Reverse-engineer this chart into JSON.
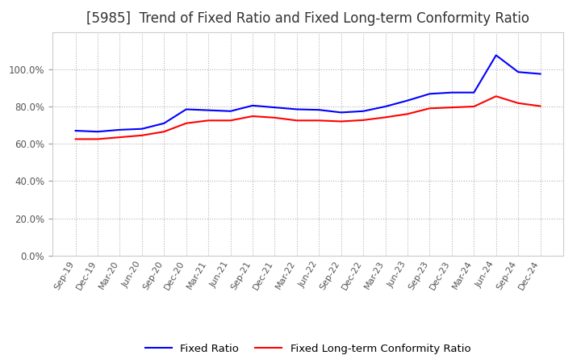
{
  "title": "[5985]  Trend of Fixed Ratio and Fixed Long-term Conformity Ratio",
  "title_fontsize": 12,
  "fixed_ratio": {
    "label": "Fixed Ratio",
    "color": "#0000FF",
    "data": [
      [
        "Sep-19",
        0.67
      ],
      [
        "Dec-19",
        0.665
      ],
      [
        "Mar-20",
        0.675
      ],
      [
        "Jun-20",
        0.68
      ],
      [
        "Sep-20",
        0.71
      ],
      [
        "Dec-20",
        0.785
      ],
      [
        "Mar-21",
        0.78
      ],
      [
        "Jun-21",
        0.775
      ],
      [
        "Sep-21",
        0.805
      ],
      [
        "Dec-21",
        0.795
      ],
      [
        "Mar-22",
        0.785
      ],
      [
        "Jun-22",
        0.782
      ],
      [
        "Sep-22",
        0.768
      ],
      [
        "Dec-22",
        0.775
      ],
      [
        "Mar-23",
        0.8
      ],
      [
        "Jun-23",
        0.832
      ],
      [
        "Sep-23",
        0.868
      ],
      [
        "Dec-23",
        0.875
      ],
      [
        "Mar-24",
        0.875
      ],
      [
        "Jun-24",
        1.075
      ],
      [
        "Sep-24",
        0.985
      ],
      [
        "Dec-24",
        0.975
      ]
    ]
  },
  "fixed_lt_ratio": {
    "label": "Fixed Long-term Conformity Ratio",
    "color": "#FF0000",
    "data": [
      [
        "Sep-19",
        0.625
      ],
      [
        "Dec-19",
        0.625
      ],
      [
        "Mar-20",
        0.635
      ],
      [
        "Jun-20",
        0.645
      ],
      [
        "Sep-20",
        0.665
      ],
      [
        "Dec-20",
        0.71
      ],
      [
        "Mar-21",
        0.725
      ],
      [
        "Jun-21",
        0.725
      ],
      [
        "Sep-21",
        0.748
      ],
      [
        "Dec-21",
        0.74
      ],
      [
        "Mar-22",
        0.725
      ],
      [
        "Jun-22",
        0.725
      ],
      [
        "Sep-22",
        0.72
      ],
      [
        "Dec-22",
        0.727
      ],
      [
        "Mar-23",
        0.742
      ],
      [
        "Jun-23",
        0.76
      ],
      [
        "Sep-23",
        0.79
      ],
      [
        "Dec-23",
        0.795
      ],
      [
        "Mar-24",
        0.8
      ],
      [
        "Jun-24",
        0.855
      ],
      [
        "Sep-24",
        0.818
      ],
      [
        "Dec-24",
        0.802
      ]
    ]
  },
  "ylim": [
    0.0,
    1.2
  ],
  "yticks": [
    0.0,
    0.2,
    0.4,
    0.6,
    0.8,
    1.0
  ],
  "background_color": "#FFFFFF",
  "grid_color": "#AAAAAA",
  "line_width": 1.5
}
